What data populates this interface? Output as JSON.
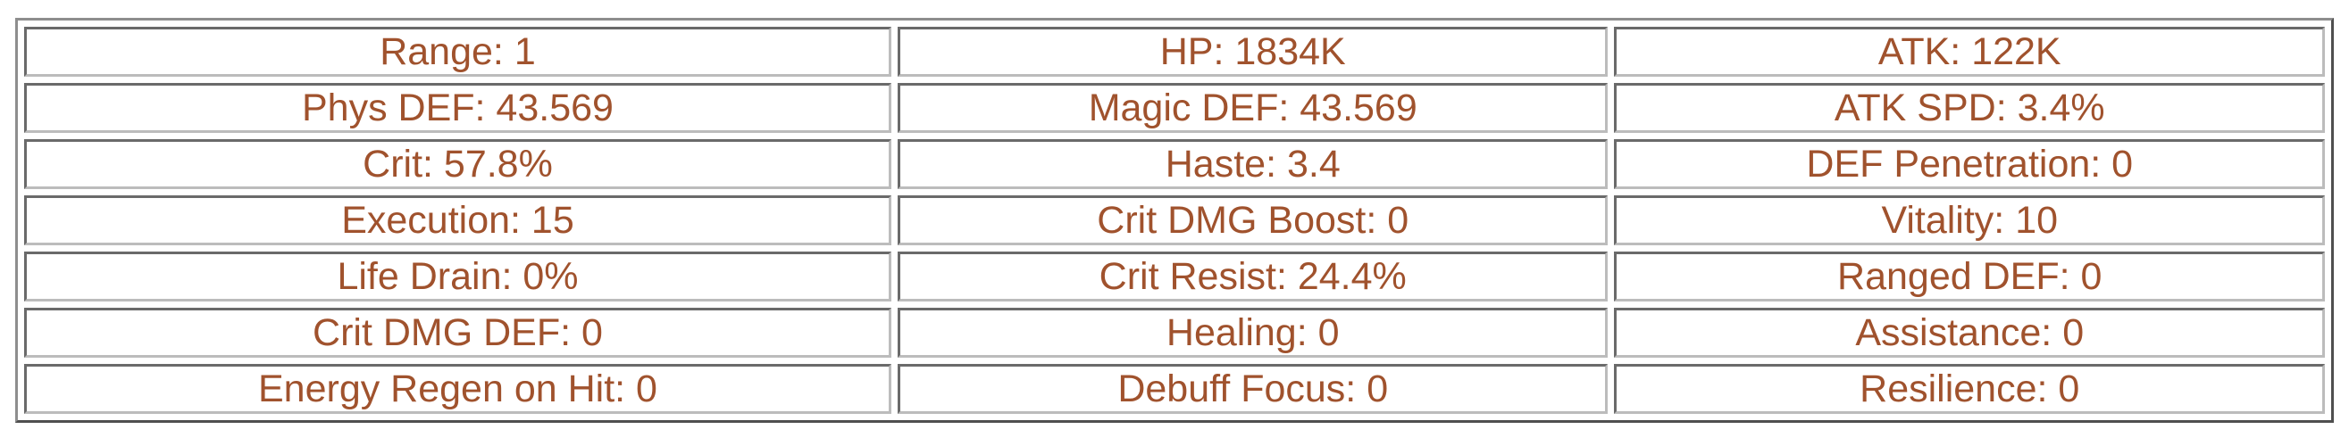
{
  "colors": {
    "stat_text": "#a0522d",
    "border_outer_light": "#8e8e8e",
    "border_outer_dark": "#4f4f4f",
    "border_cell_dark": "#6a6a6a",
    "border_cell_light": "#bcbcbc",
    "background": "#ffffff"
  },
  "stats_table": {
    "rows": [
      [
        "Range: 1",
        "HP: 1834K",
        "ATK: 122K"
      ],
      [
        "Phys DEF: 43.569",
        "Magic DEF: 43.569",
        "ATK SPD: 3.4%"
      ],
      [
        "Crit: 57.8%",
        "Haste: 3.4",
        "DEF Penetration: 0"
      ],
      [
        "Execution: 15",
        "Crit DMG Boost: 0",
        "Vitality: 10"
      ],
      [
        "Life Drain: 0%",
        "Crit Resist: 24.4%",
        "Ranged DEF: 0"
      ],
      [
        "Crit DMG DEF: 0",
        "Healing: 0",
        "Assistance: 0"
      ],
      [
        "Energy Regen on Hit: 0",
        "Debuff Focus: 0",
        "Resilience: 0"
      ]
    ]
  }
}
